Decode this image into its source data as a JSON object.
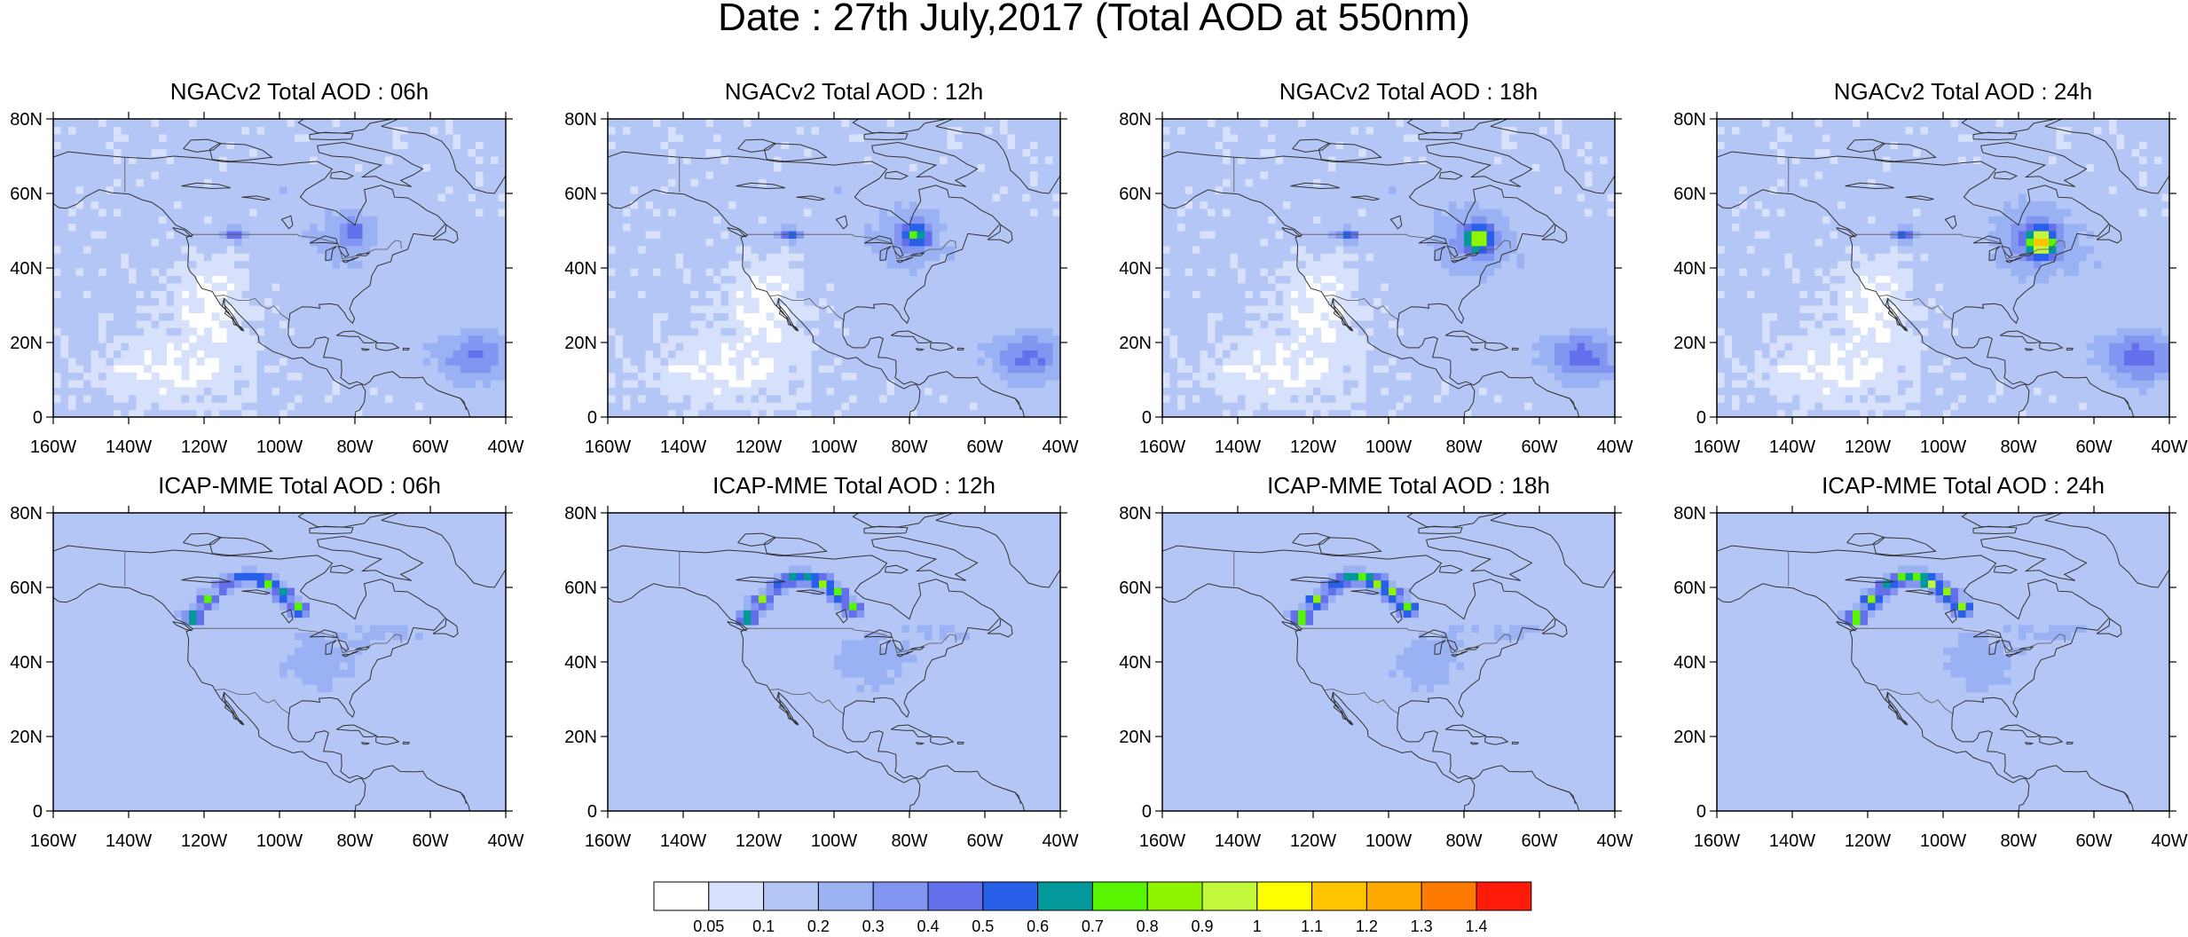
{
  "title": "Date : 27th July,2017 (Total AOD at 550nm)",
  "lat_ticks": [
    "80N",
    "60N",
    "40N",
    "20N",
    "0"
  ],
  "lon_ticks": [
    "160W",
    "140W",
    "120W",
    "100W",
    "80W",
    "60W",
    "40W"
  ],
  "panels": [
    {
      "title": "NGACv2 Total AOD : 06h",
      "model": "NGACv2",
      "hour": "06h"
    },
    {
      "title": "NGACv2 Total AOD : 12h",
      "model": "NGACv2",
      "hour": "12h"
    },
    {
      "title": "NGACv2 Total AOD : 18h",
      "model": "NGACv2",
      "hour": "18h"
    },
    {
      "title": "NGACv2 Total AOD : 24h",
      "model": "NGACv2",
      "hour": "24h"
    },
    {
      "title": "ICAP-MME Total AOD : 06h",
      "model": "ICAP-MME",
      "hour": "06h"
    },
    {
      "title": "ICAP-MME Total AOD : 12h",
      "model": "ICAP-MME",
      "hour": "12h"
    },
    {
      "title": "ICAP-MME Total AOD : 18h",
      "model": "ICAP-MME",
      "hour": "18h"
    },
    {
      "title": "ICAP-MME Total AOD : 24h",
      "model": "ICAP-MME",
      "hour": "24h"
    }
  ],
  "colorbar": {
    "labels": [
      "0.05",
      "0.1",
      "0.2",
      "0.3",
      "0.4",
      "0.5",
      "0.6",
      "0.7",
      "0.8",
      "0.9",
      "1",
      "1.1",
      "1.2",
      "1.3",
      "1.4"
    ],
    "colors": [
      "#ffffff",
      "#d7e1fb",
      "#b4c6f6",
      "#9ab1f4",
      "#8296f1",
      "#6470eb",
      "#2860ea",
      "#03999a",
      "#58f500",
      "#8ff400",
      "#c1f83c",
      "#ffff00",
      "#ffc400",
      "#ffa800",
      "#ff7a00",
      "#ff1a0a"
    ]
  }
}
